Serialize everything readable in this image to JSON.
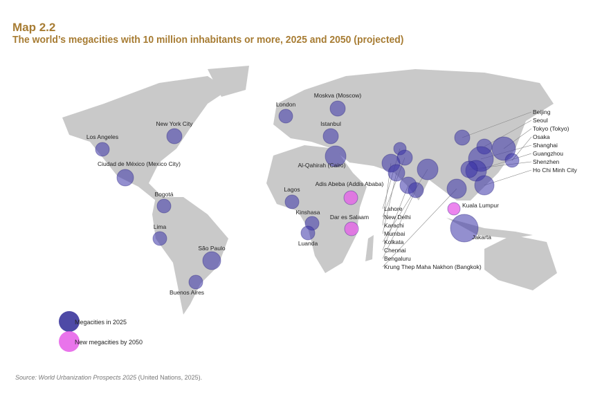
{
  "header": {
    "map_number": "Map 2.2",
    "title": "The world’s megacities with 10 million inhabitants or more, 2025 and 2050 (projected)"
  },
  "colors": {
    "megacity_2025": "#3a33a8",
    "new_2050": "#e55ce8",
    "land": "#c9c9c9",
    "title": "#a77c33"
  },
  "legend": [
    {
      "label": "Megacities in 2025",
      "type": "2025"
    },
    {
      "label": "New megacities by 2050",
      "type": "2050"
    }
  ],
  "cities": [
    {
      "name": "Los Angeles",
      "type": "2025"
    },
    {
      "name": "New York City",
      "type": "2025"
    },
    {
      "name": "Ciudad de México (Mexico City)",
      "type": "2025"
    },
    {
      "name": "Bogotá",
      "type": "2025"
    },
    {
      "name": "Lima",
      "type": "2025"
    },
    {
      "name": "São Paulo",
      "type": "2025"
    },
    {
      "name": "Buenos Aires",
      "type": "2025"
    },
    {
      "name": "London",
      "type": "2025"
    },
    {
      "name": "Moskva (Moscow)",
      "type": "2025"
    },
    {
      "name": "Istanbul",
      "type": "2025"
    },
    {
      "name": "Al-Qahirah (Cairo)",
      "type": "2025"
    },
    {
      "name": "Lagos",
      "type": "2025"
    },
    {
      "name": "Kinshasa",
      "type": "2025"
    },
    {
      "name": "Luanda",
      "type": "2025"
    },
    {
      "name": "Adis Abeba (Addis Ababa)",
      "type": "2050"
    },
    {
      "name": "Dar es Salaam",
      "type": "2050"
    },
    {
      "name": "Lahore",
      "type": "2025"
    },
    {
      "name": "New Delhi",
      "type": "2025"
    },
    {
      "name": "Karachi",
      "type": "2025"
    },
    {
      "name": "Mumbai",
      "type": "2025"
    },
    {
      "name": "Kolkata",
      "type": "2025"
    },
    {
      "name": "Chennai",
      "type": "2025"
    },
    {
      "name": "Bengaluru",
      "type": "2025"
    },
    {
      "name": "Krung Thep Maha Nakhon (Bangkok)",
      "type": "2025"
    },
    {
      "name": "Beijing",
      "type": "2025"
    },
    {
      "name": "Seoul",
      "type": "2025"
    },
    {
      "name": "Tokyo (Tokyo)",
      "type": "2025"
    },
    {
      "name": "Shanghai",
      "type": "2025"
    },
    {
      "name": "Guangzhou",
      "type": "2025"
    },
    {
      "name": "Osaka",
      "type": "2025"
    },
    {
      "name": "Shenzhen",
      "type": "2025"
    },
    {
      "name": "Ho Chi Minh City",
      "type": "2025"
    },
    {
      "name": "Kuala Lumpur",
      "type": "2050"
    },
    {
      "name": "Jakarta",
      "type": "2025"
    }
  ],
  "source": {
    "prefix": "Source: World Urbanization Prospects 2025",
    "suffix": " (United Nations, 2025)."
  }
}
